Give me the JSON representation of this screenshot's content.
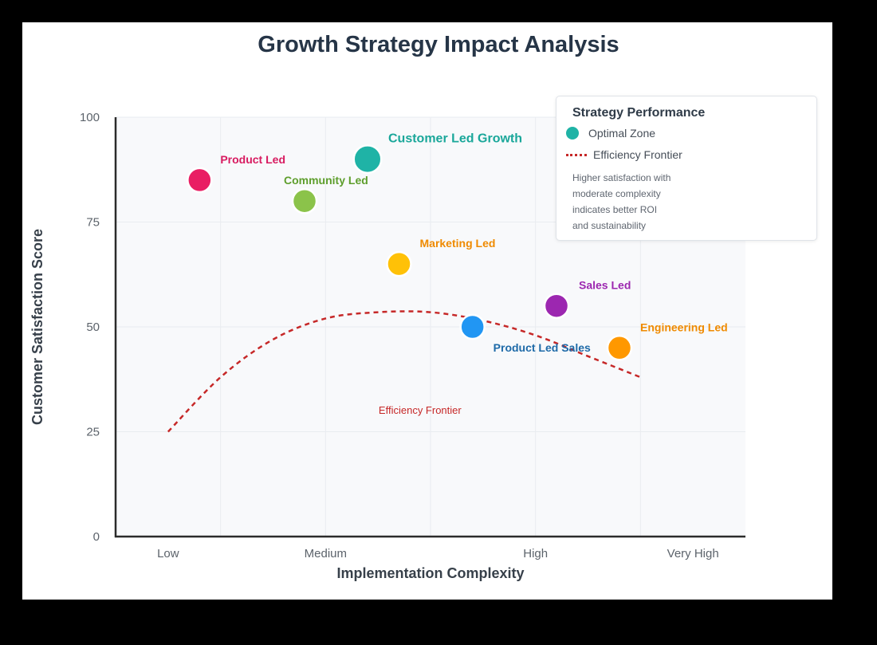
{
  "chart_data": {
    "type": "scatter",
    "title": "Growth Strategy Impact Analysis",
    "xlabel": "Implementation Complexity",
    "ylabel": "Customer Satisfaction Score",
    "xlim": [
      0.5,
      6.5
    ],
    "ylim": [
      0,
      100
    ],
    "xticks": [
      {
        "value": 1,
        "label": "Low"
      },
      {
        "value": 2.5,
        "label": "Medium"
      },
      {
        "value": 4.5,
        "label": "High"
      },
      {
        "value": 6,
        "label": "Very High"
      }
    ],
    "yticks": [
      0,
      25,
      50,
      75,
      100
    ],
    "grid": true,
    "points": [
      {
        "name": "Product Led",
        "x": 1.3,
        "y": 85,
        "size": 1.0,
        "color": "#e91e63",
        "label_color": "#d81b60"
      },
      {
        "name": "Customer Led Growth",
        "x": 2.9,
        "y": 90,
        "size": 1.15,
        "color": "#1fb3a6",
        "label_color": "#1aa79a"
      },
      {
        "name": "Community Led",
        "x": 2.3,
        "y": 80,
        "size": 1.0,
        "color": "#8bc34a",
        "label_color": "#5e9e2c"
      },
      {
        "name": "Marketing Led",
        "x": 3.2,
        "y": 65,
        "size": 1.0,
        "color": "#ffc107",
        "label_color": "#ef8a00"
      },
      {
        "name": "Product Led Sales",
        "x": 3.9,
        "y": 50,
        "size": 1.0,
        "color": "#2196f3",
        "label_color": "#1e6aa8"
      },
      {
        "name": "Sales Led",
        "x": 4.7,
        "y": 55,
        "size": 1.0,
        "color": "#9c27b0",
        "label_color": "#9c27b0"
      },
      {
        "name": "Engineering Led",
        "x": 5.3,
        "y": 45,
        "size": 1.0,
        "color": "#ff9800",
        "label_color": "#ef8a00"
      }
    ],
    "frontier": {
      "name": "Efficiency Frontier",
      "color": "#c62828",
      "x": [
        1,
        1.5,
        2,
        2.5,
        3,
        3.5,
        4,
        4.5,
        5,
        5.5
      ],
      "y": [
        25,
        38,
        47,
        52,
        53.5,
        53.5,
        51.5,
        48,
        43,
        38
      ]
    },
    "annotation": "Efficiency Frontier",
    "legend": {
      "title": "Strategy Performance",
      "placement": "top-right",
      "entries": [
        {
          "label": "Optimal Zone",
          "kind": "dot",
          "color": "#1fb3a6"
        },
        {
          "label": "Efficiency Frontier",
          "kind": "dash",
          "color": "#c62828"
        }
      ],
      "note_lines": [
        "Higher satisfaction with",
        "moderate complexity",
        "indicates better ROI",
        "and sustainability"
      ]
    }
  }
}
